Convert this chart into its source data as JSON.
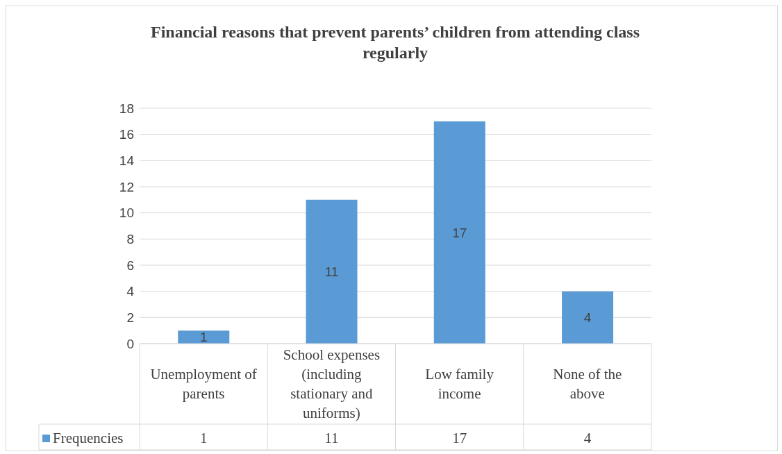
{
  "chart_data": {
    "type": "bar",
    "title": "Financial reasons that prevent parents’ children from attending class regularly",
    "categories": [
      "Unemployment of parents",
      "School expenses (including stationary and uniforms)",
      "Low family income",
      "None of the above"
    ],
    "series": [
      {
        "name": "Frequencies",
        "color": "#5b9bd5",
        "values": [
          1,
          11,
          17,
          4
        ]
      }
    ],
    "value_labels": [
      "1",
      "11",
      "17",
      "4"
    ],
    "ylim": [
      0,
      18
    ],
    "yticks": [
      0,
      2,
      4,
      6,
      8,
      10,
      12,
      14,
      16,
      18
    ],
    "grid": "y",
    "legend": "bottom",
    "data_labels": true
  }
}
